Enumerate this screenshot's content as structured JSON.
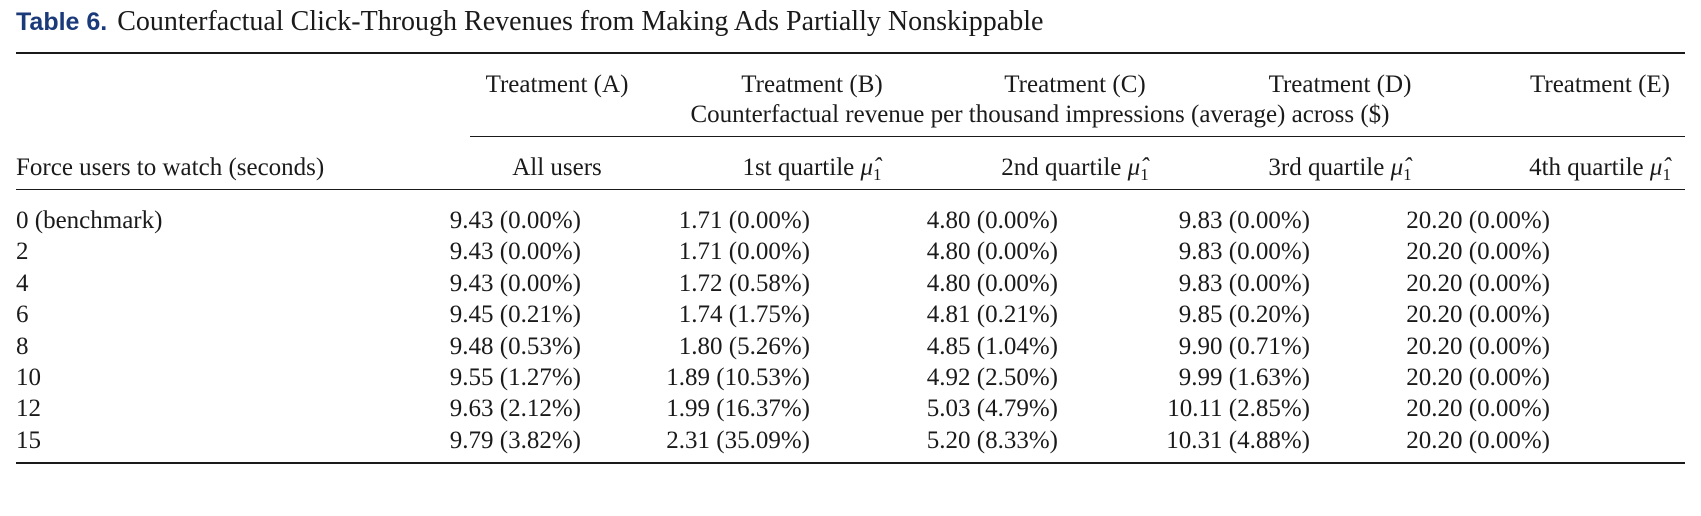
{
  "caption": {
    "label": "Table 6.",
    "title": "Counterfactual Click-Through Revenues from Making Ads Partially Nonskippable"
  },
  "header": {
    "treatments": [
      "Treatment (A)",
      "Treatment (B)",
      "Treatment (C)",
      "Treatment (D)",
      "Treatment (E)"
    ],
    "spanner": "Counterfactual revenue per thousand impressions (average) across ($)",
    "stub_label": "Force users to watch (seconds)",
    "groups": [
      {
        "text": "All users",
        "mu": ""
      },
      {
        "text": "1st quartile",
        "mu": "μ̂",
        "sub": "1"
      },
      {
        "text": "2nd quartile",
        "mu": "μ̂",
        "sub": "1"
      },
      {
        "text": "3rd quartile",
        "mu": "μ̂",
        "sub": "1"
      },
      {
        "text": "4th quartile",
        "mu": "μ̂",
        "sub": "1"
      }
    ]
  },
  "rows": [
    {
      "seconds": "0 (benchmark)",
      "cells": [
        "9.43 (0.00%)",
        "1.71 (0.00%)",
        "4.80 (0.00%)",
        "9.83 (0.00%)",
        "20.20 (0.00%)"
      ]
    },
    {
      "seconds": "2",
      "cells": [
        "9.43 (0.00%)",
        "1.71 (0.00%)",
        "4.80 (0.00%)",
        "9.83 (0.00%)",
        "20.20 (0.00%)"
      ]
    },
    {
      "seconds": "4",
      "cells": [
        "9.43 (0.00%)",
        "1.72 (0.58%)",
        "4.80 (0.00%)",
        "9.83 (0.00%)",
        "20.20 (0.00%)"
      ]
    },
    {
      "seconds": "6",
      "cells": [
        "9.45 (0.21%)",
        "1.74 (1.75%)",
        "4.81 (0.21%)",
        "9.85 (0.20%)",
        "20.20 (0.00%)"
      ]
    },
    {
      "seconds": "8",
      "cells": [
        "9.48 (0.53%)",
        "1.80 (5.26%)",
        "4.85 (1.04%)",
        "9.90 (0.71%)",
        "20.20 (0.00%)"
      ]
    },
    {
      "seconds": "10",
      "cells": [
        "9.55 (1.27%)",
        "1.89 (10.53%)",
        "4.92 (2.50%)",
        "9.99 (1.63%)",
        "20.20 (0.00%)"
      ]
    },
    {
      "seconds": "12",
      "cells": [
        "9.63 (2.12%)",
        "1.99 (16.37%)",
        "5.03 (4.79%)",
        "10.11 (2.85%)",
        "20.20 (0.00%)"
      ]
    },
    {
      "seconds": "15",
      "cells": [
        "9.79 (3.82%)",
        "2.31 (35.09%)",
        "5.20 (8.33%)",
        "10.31 (4.88%)",
        "20.20 (0.00%)"
      ]
    }
  ]
}
